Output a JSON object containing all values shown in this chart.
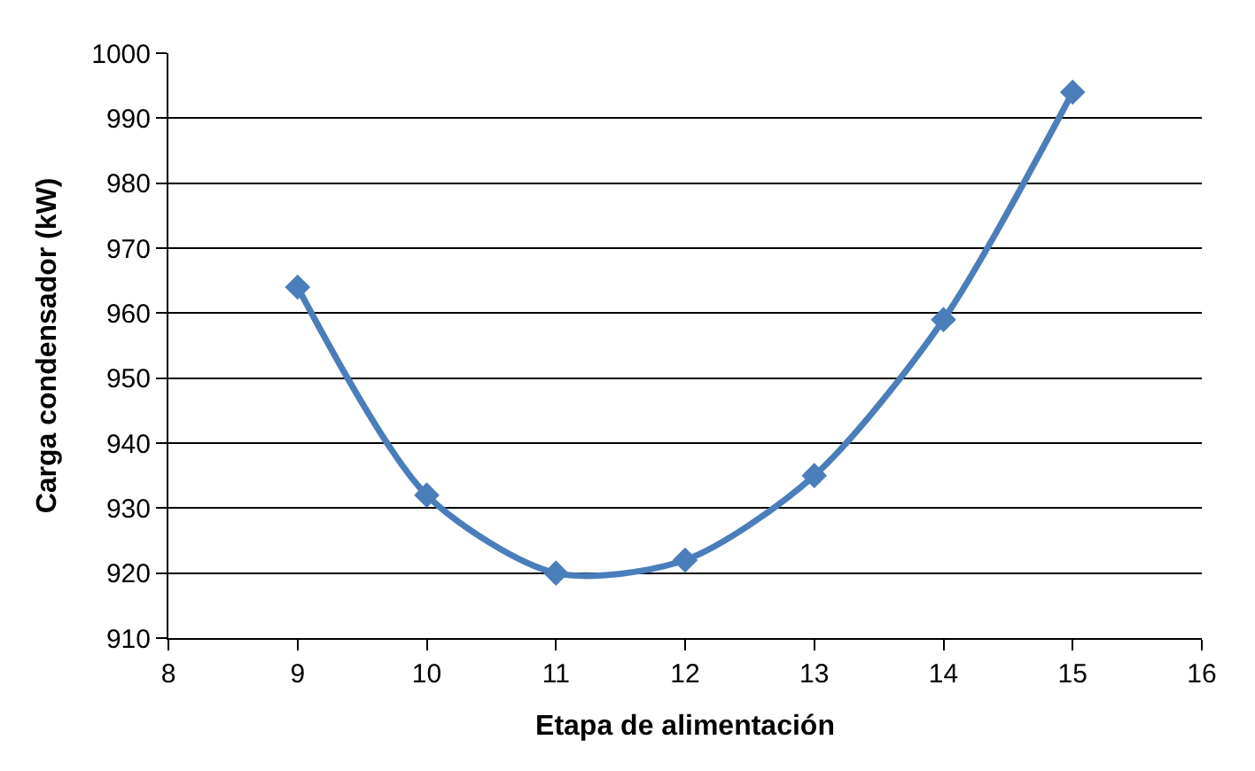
{
  "chart_data": {
    "type": "line",
    "xlabel": "Etapa de alimentación",
    "ylabel": "Carga condensador (kW)",
    "x": [
      9,
      10,
      11,
      12,
      13,
      14,
      15
    ],
    "series": [
      {
        "color": "#4a7ebb",
        "values": [
          964,
          932,
          920,
          922,
          935,
          959,
          994
        ]
      }
    ],
    "xlim": [
      8,
      16
    ],
    "xticks": [
      8,
      9,
      10,
      11,
      12,
      13,
      14,
      15,
      16
    ],
    "ylim": [
      910,
      1000
    ],
    "yticks": [
      910,
      920,
      930,
      940,
      950,
      960,
      970,
      980,
      990,
      1000
    ],
    "grid": "y",
    "marker": "diamond",
    "line_style": "solid",
    "legend": false
  }
}
